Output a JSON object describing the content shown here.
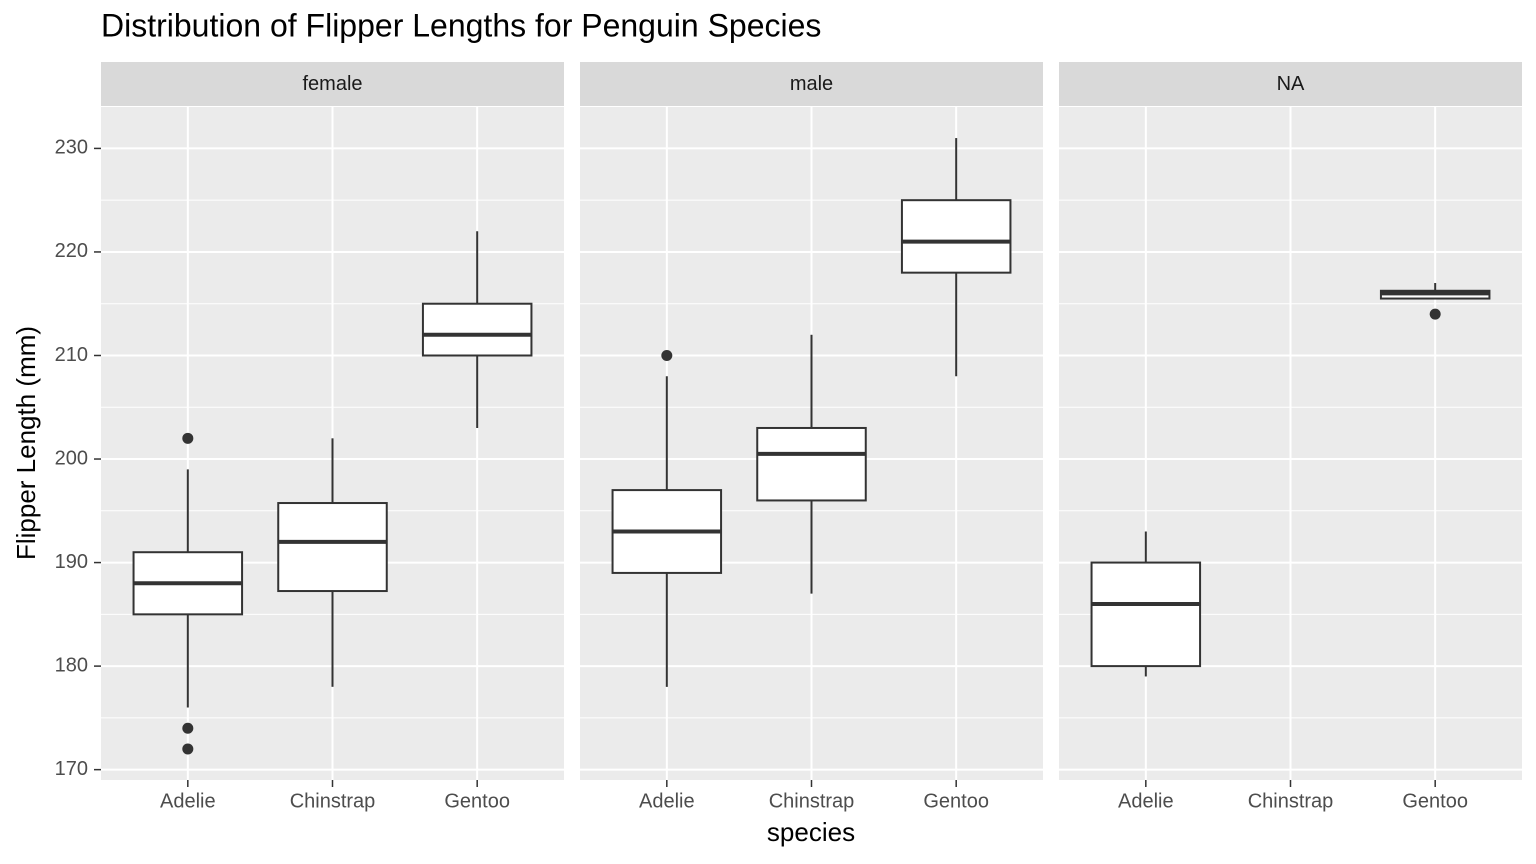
{
  "chart_data": {
    "type": "boxplot",
    "title": "Distribution of Flipper Lengths for Penguin Species",
    "x_label": "species",
    "y_label": "Flipper Length (mm)",
    "categories": [
      "Adelie",
      "Chinstrap",
      "Gentoo"
    ],
    "ylim": [
      169,
      234
    ],
    "yticks": [
      170,
      180,
      190,
      200,
      210,
      220,
      230
    ],
    "grid": true,
    "box_color": "#333333",
    "box_fill": "#ffffff",
    "facets": [
      {
        "name": "female",
        "boxes": [
          {
            "min": 176,
            "q1": 185,
            "median": 188,
            "q3": 191,
            "max": 199,
            "outliers": [
              202,
              174,
              172
            ]
          },
          {
            "min": 178,
            "q1": 187.25,
            "median": 192,
            "q3": 195.75,
            "max": 202,
            "outliers": []
          },
          {
            "min": 203,
            "q1": 210,
            "median": 212,
            "q3": 215,
            "max": 222,
            "outliers": []
          }
        ]
      },
      {
        "name": "male",
        "boxes": [
          {
            "min": 178,
            "q1": 189,
            "median": 193,
            "q3": 197,
            "max": 208,
            "outliers": [
              210
            ]
          },
          {
            "min": 187,
            "q1": 196,
            "median": 200.5,
            "q3": 203,
            "max": 212,
            "outliers": []
          },
          {
            "min": 208,
            "q1": 218,
            "median": 221,
            "q3": 225,
            "max": 231,
            "outliers": []
          }
        ]
      },
      {
        "name": "NA",
        "boxes": [
          {
            "min": 179,
            "q1": 180,
            "median": 186,
            "q3": 190,
            "max": 193,
            "outliers": []
          },
          null,
          {
            "min": 215.5,
            "q1": 215.5,
            "median": 216,
            "q3": 216.25,
            "max": 217,
            "outliers": [
              214
            ]
          }
        ]
      }
    ]
  }
}
